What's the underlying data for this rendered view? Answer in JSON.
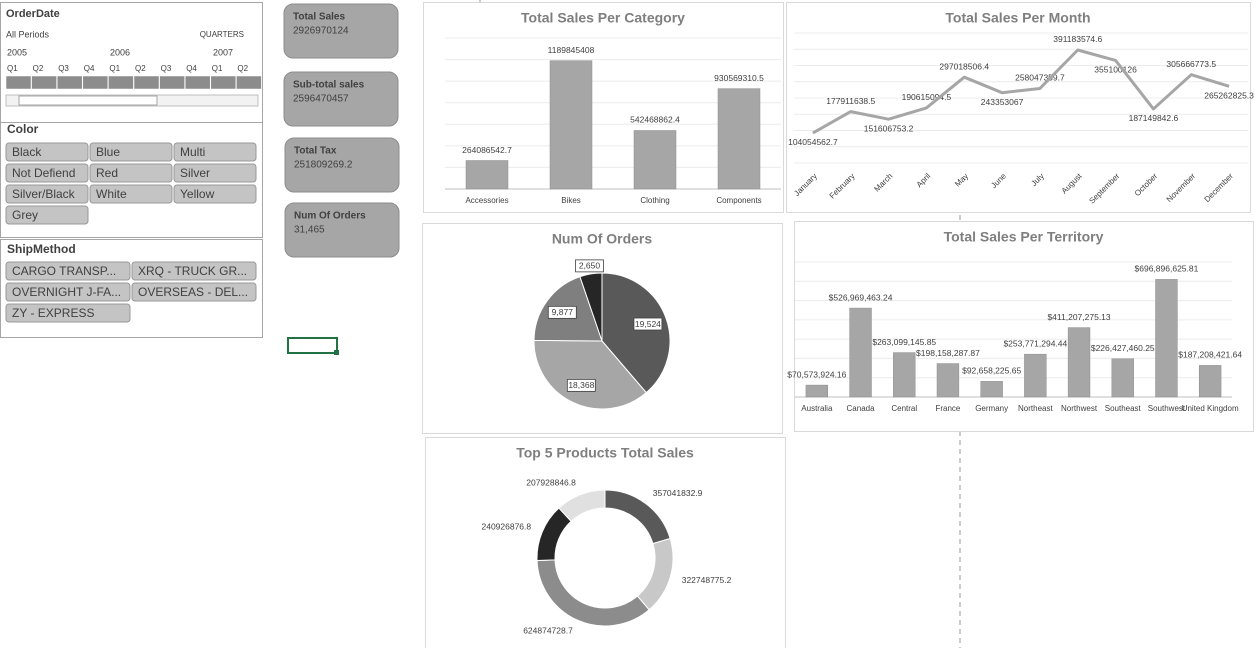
{
  "slicers": {
    "order_date": {
      "title": "OrderDate",
      "period": "All Periods",
      "level": "QUARTERS",
      "years": [
        "2005",
        "2006",
        "2007"
      ],
      "quarters": [
        "Q1",
        "Q2",
        "Q3",
        "Q4",
        "Q1",
        "Q2",
        "Q3",
        "Q4",
        "Q1",
        "Q2"
      ]
    },
    "color": {
      "title": "Color",
      "items": [
        "Black",
        "Blue",
        "Multi",
        "Not Defiend",
        "Red",
        "Silver",
        "Silver/Black",
        "White",
        "Yellow",
        "Grey"
      ]
    },
    "ship_method": {
      "title": "ShipMethod",
      "items": [
        "CARGO TRANSP...",
        "XRQ - TRUCK GR...",
        "OVERNIGHT J-FA...",
        "OVERSEAS - DEL...",
        "ZY - EXPRESS"
      ]
    }
  },
  "kpis": [
    {
      "label": "Total Sales",
      "value": "2926970124"
    },
    {
      "label": "Sub-total sales",
      "value": "2596470457"
    },
    {
      "label": "Total Tax",
      "value": "251809269.2"
    },
    {
      "label": "Num Of Orders",
      "value": "31,465"
    }
  ],
  "chart_data": [
    {
      "type": "bar",
      "title": "Total Sales Per Category",
      "categories": [
        "Accessories",
        "Bikes",
        "Clothing",
        "Components"
      ],
      "values": [
        264086542.7,
        1189845408,
        542468862.4,
        930569310.5
      ],
      "color": "#a6a6a6",
      "ylim": [
        0,
        1400000000
      ]
    },
    {
      "type": "line",
      "title": "Total Sales Per Month",
      "categories": [
        "January",
        "February",
        "March",
        "April",
        "May",
        "June",
        "July",
        "August",
        "September",
        "October",
        "November",
        "December"
      ],
      "values": [
        104054562.7,
        177911638.5,
        151606753.2,
        190615094.5,
        297018506.4,
        243353067,
        258047359.7,
        391183574.6,
        355100126,
        187149842.6,
        305666773.5,
        265262825.3
      ],
      "color": "#a6a6a6",
      "ylim": [
        0,
        450000000
      ]
    },
    {
      "type": "pie",
      "title": "Num Of Orders",
      "values": [
        19524,
        18368,
        9877,
        2650
      ],
      "value_labels": [
        "19,524",
        "18,368",
        "9,877",
        "2,650"
      ],
      "colors": [
        "#595959",
        "#a6a6a6",
        "#7f7f7f",
        "#262626"
      ]
    },
    {
      "type": "bar",
      "title": "Total Sales Per Territory",
      "categories": [
        "Australia",
        "Canada",
        "Central",
        "France",
        "Germany",
        "Northeast",
        "Northwest",
        "Southeast",
        "Southwest",
        "United Kingdom"
      ],
      "values": [
        70573924.16,
        526969463.24,
        263099145.85,
        198158287.87,
        92658225.65,
        253771294.44,
        411207275.13,
        226427460.25,
        696896625.81,
        187208421.64
      ],
      "value_labels": [
        "$70,573,924.16",
        "$526,969,463.24",
        "$263,099,145.85",
        "$198,158,287.87",
        "$92,658,225.65",
        "$253,771,294.44",
        "$411,207,275.13",
        "$226,427,460.25",
        "$696,896,625.81",
        "$187,208,421.64"
      ],
      "color": "#a6a6a6",
      "ylim": [
        0,
        800000000
      ]
    },
    {
      "type": "doughnut",
      "title": "Top 5 Products Total Sales",
      "values": [
        357041832.9,
        322748775.2,
        624874728.7,
        240926876.8,
        207928846.8
      ],
      "colors": [
        "#595959",
        "#c8c8c8",
        "#8c8c8c",
        "#262626",
        "#e0e0e0"
      ]
    }
  ]
}
